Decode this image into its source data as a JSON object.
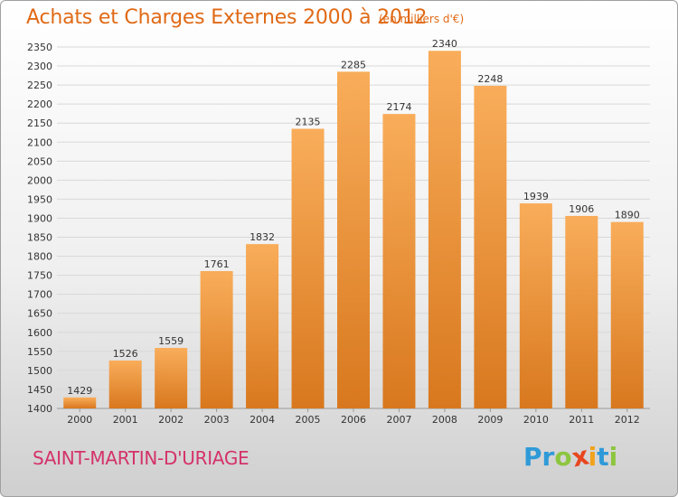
{
  "header": {
    "title": "Achats et Charges Externes 2000 à 2012",
    "subtitle": "(en milliers d'€)"
  },
  "footer": {
    "commune": "SAINT-MARTIN-D'URIAGE",
    "logo_letters": [
      "P",
      "r",
      "o",
      "x",
      "i",
      "t",
      "i"
    ],
    "logo_colors": [
      "#2f9ad8",
      "#2f9ad8",
      "#8cc63f",
      "#e8461e",
      "#f2a21b",
      "#2f9ad8",
      "#8cc63f"
    ]
  },
  "colors": {
    "bar_light": "#f9ad5a",
    "bar_dark": "#d8781e",
    "grid": "#d8d8d8",
    "title": "#e06a16",
    "commune": "#d4326a"
  },
  "chart_data": {
    "type": "bar",
    "title": "Achats et Charges Externes 2000 à 2012",
    "subtitle": "(en milliers d'€)",
    "categories": [
      "2000",
      "2001",
      "2002",
      "2003",
      "2004",
      "2005",
      "2006",
      "2007",
      "2008",
      "2009",
      "2010",
      "2011",
      "2012"
    ],
    "values": [
      1429,
      1526,
      1559,
      1761,
      1832,
      2135,
      2285,
      2174,
      2340,
      2248,
      1939,
      1906,
      1890
    ],
    "ylim": [
      1400,
      2350
    ],
    "yticks": [
      1400,
      1450,
      1500,
      1550,
      1600,
      1650,
      1700,
      1750,
      1800,
      1850,
      1900,
      1950,
      2000,
      2050,
      2100,
      2150,
      2200,
      2250,
      2300,
      2350
    ],
    "grid": true,
    "data_labels": true
  }
}
